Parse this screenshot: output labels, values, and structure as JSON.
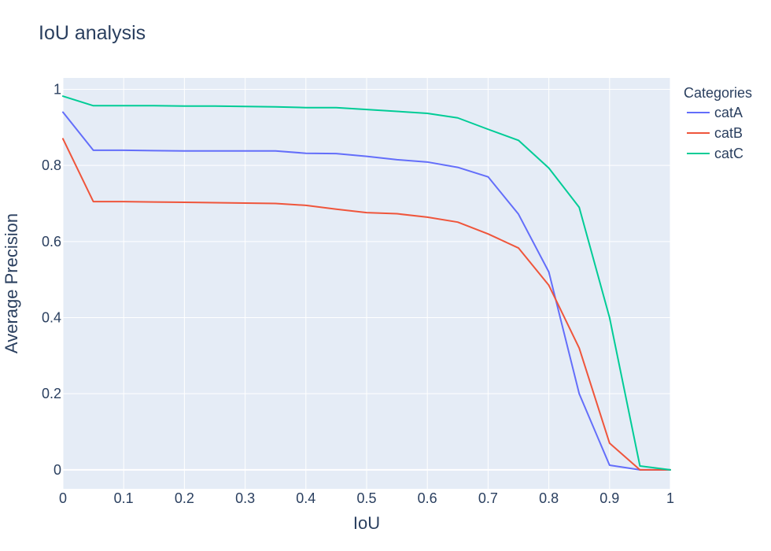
{
  "chart_data": {
    "type": "line",
    "title": "IoU analysis",
    "xlabel": "IoU",
    "ylabel": "Average Precision",
    "xlim": [
      0,
      1
    ],
    "ylim": [
      -0.05,
      1.03
    ],
    "xticks": [
      0,
      0.1,
      0.2,
      0.3,
      0.4,
      0.5,
      0.6,
      0.7,
      0.8,
      0.9,
      1
    ],
    "xtick_labels": [
      "0",
      "0.1",
      "0.2",
      "0.3",
      "0.4",
      "0.5",
      "0.6",
      "0.7",
      "0.8",
      "0.9",
      "1"
    ],
    "yticks": [
      0,
      0.2,
      0.4,
      0.6,
      0.8,
      1
    ],
    "ytick_labels": [
      "0",
      "0.2",
      "0.4",
      "0.6",
      "0.8",
      "1"
    ],
    "grid": true,
    "legend": {
      "title": "Categories",
      "placement": "right"
    },
    "x": [
      0,
      0.05,
      0.1,
      0.15,
      0.2,
      0.25,
      0.3,
      0.35,
      0.4,
      0.45,
      0.5,
      0.55,
      0.6,
      0.65,
      0.7,
      0.75,
      0.8,
      0.85,
      0.9,
      0.95,
      1
    ],
    "series": [
      {
        "name": "catA",
        "color": "#636efa",
        "values": [
          0.94,
          0.84,
          0.84,
          0.839,
          0.838,
          0.838,
          0.838,
          0.838,
          0.832,
          0.831,
          0.824,
          0.815,
          0.809,
          0.795,
          0.77,
          0.672,
          0.52,
          0.2,
          0.012,
          0.0,
          0.0
        ]
      },
      {
        "name": "catB",
        "color": "#ef553b",
        "values": [
          0.87,
          0.705,
          0.705,
          0.704,
          0.703,
          0.702,
          0.701,
          0.7,
          0.695,
          0.685,
          0.676,
          0.673,
          0.664,
          0.651,
          0.62,
          0.583,
          0.485,
          0.32,
          0.07,
          0.0,
          0.0
        ]
      },
      {
        "name": "catC",
        "color": "#00cc96",
        "values": [
          0.982,
          0.957,
          0.957,
          0.957,
          0.956,
          0.956,
          0.955,
          0.954,
          0.952,
          0.952,
          0.947,
          0.942,
          0.937,
          0.925,
          0.895,
          0.866,
          0.793,
          0.69,
          0.4,
          0.01,
          0.0
        ]
      }
    ]
  }
}
